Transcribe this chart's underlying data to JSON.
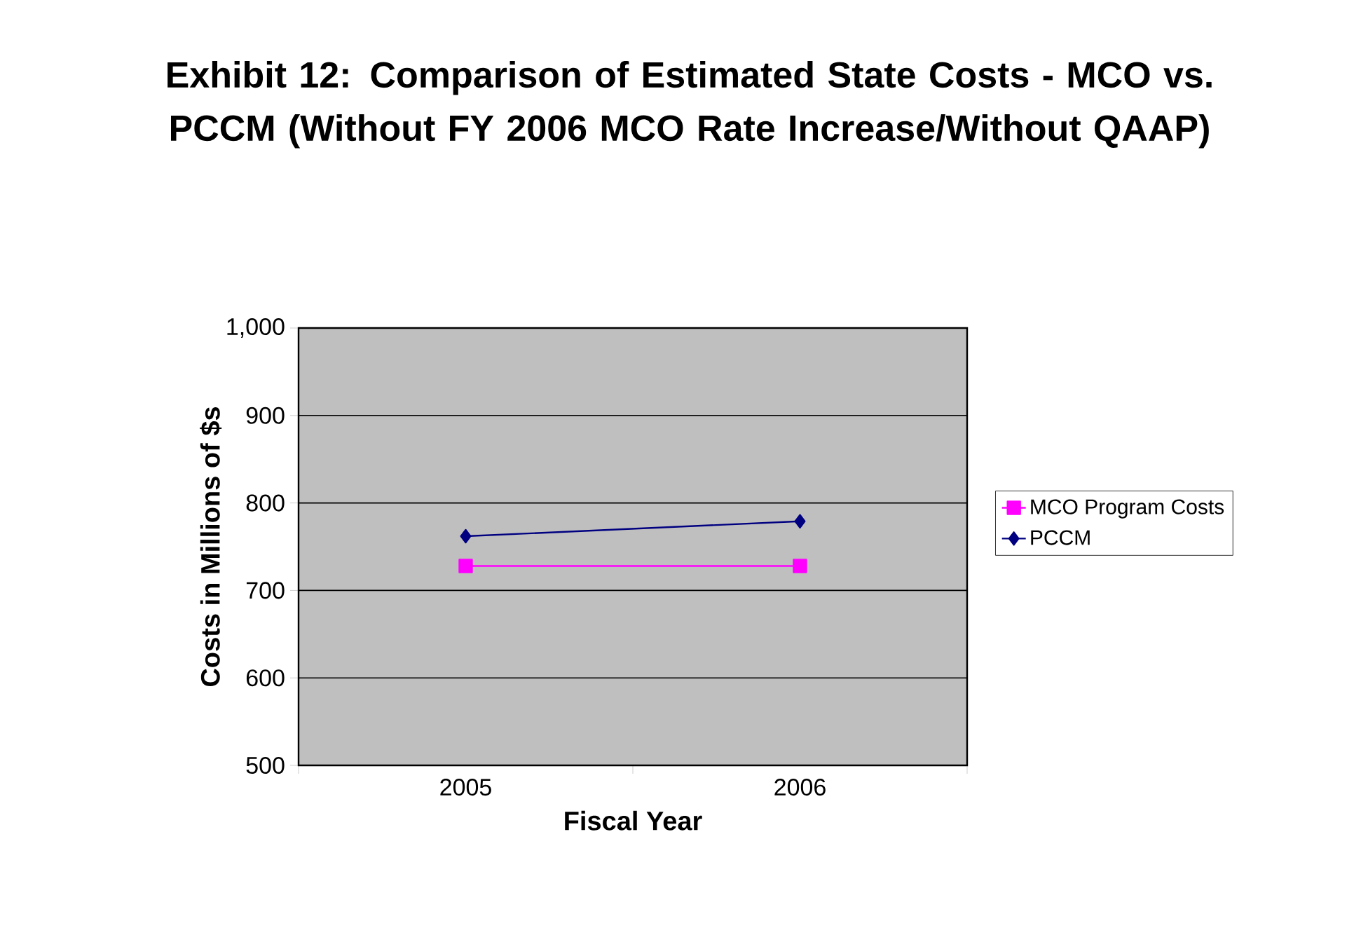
{
  "chart_data": {
    "type": "line",
    "title": "Exhibit 12: Comparison of Estimated State Costs - MCO vs. PCCM (Without FY 2006 MCO Rate Increase/Without QAAP)",
    "xlabel": "Fiscal Year",
    "ylabel": "Costs in Millions of $s",
    "categories": [
      "2005",
      "2006"
    ],
    "series": [
      {
        "name": "MCO Program Costs",
        "color": "#ff00ff",
        "marker": "square",
        "values": [
          728,
          728
        ]
      },
      {
        "name": "PCCM",
        "color": "#000080",
        "marker": "diamond",
        "values": [
          762,
          779
        ]
      }
    ],
    "ylim": [
      500,
      1000
    ],
    "yticks": [
      500,
      600,
      700,
      800,
      900,
      {
        "value": 1000,
        "label": "1,000"
      }
    ],
    "grid": "y",
    "legend": "right",
    "line_style": "solid"
  }
}
